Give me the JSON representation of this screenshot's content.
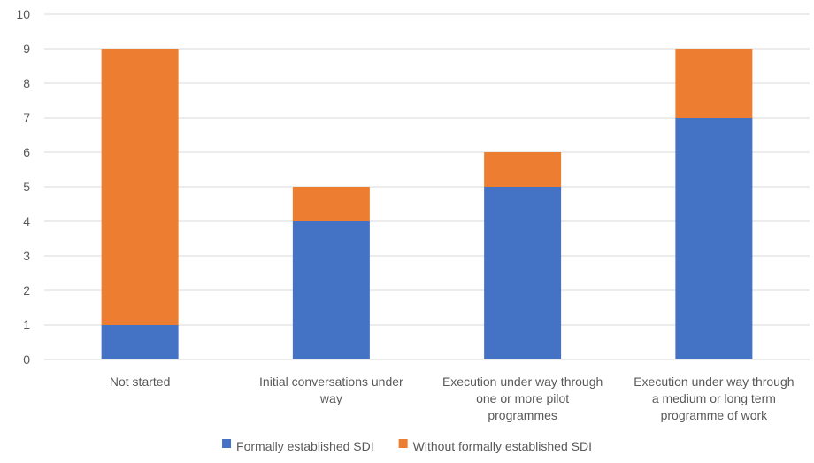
{
  "chart_data": {
    "type": "bar",
    "stacked": true,
    "categories": [
      [
        "Not started"
      ],
      [
        "Initial conversations under",
        "way"
      ],
      [
        "Execution under way through",
        "one or more pilot",
        "programmes"
      ],
      [
        "Execution under way through",
        "a medium or long term",
        "programme of work"
      ]
    ],
    "series": [
      {
        "name": "Formally established SDI",
        "color": "#4472C4",
        "values": [
          1,
          4,
          5,
          7
        ]
      },
      {
        "name": "Without formally established SDI",
        "color": "#ED7D31",
        "values": [
          8,
          1,
          1,
          2
        ]
      }
    ],
    "ylim": [
      0,
      10
    ],
    "yticks": [
      0,
      1,
      2,
      3,
      4,
      5,
      6,
      7,
      8,
      9,
      10
    ],
    "grid": true,
    "legend_position": "bottom"
  }
}
